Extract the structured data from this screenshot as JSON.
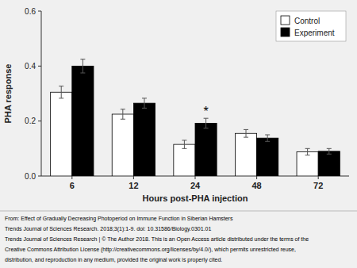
{
  "chart_data": {
    "type": "bar",
    "xlabel": "Hours post-PHA injection",
    "ylabel": "PHA response",
    "categories": [
      6,
      12,
      24,
      48,
      72
    ],
    "series": [
      {
        "name": "Control",
        "color": "#ffffff",
        "values": [
          0.305,
          0.225,
          0.115,
          0.155,
          0.088
        ],
        "errors": [
          0.022,
          0.018,
          0.015,
          0.014,
          0.012
        ]
      },
      {
        "name": "Experiment",
        "color": "#000000",
        "values": [
          0.4,
          0.265,
          0.192,
          0.138,
          0.09
        ],
        "errors": [
          0.025,
          0.018,
          0.018,
          0.012,
          0.01
        ]
      }
    ],
    "ylim": [
      0.0,
      0.6
    ],
    "yticks": [
      {
        "value": 0.0,
        "label": "0.0"
      },
      0.2,
      0.4,
      0.6
    ],
    "legend": "upper right",
    "grid": false,
    "annotations": [
      {
        "text": "*",
        "category": 24,
        "series": "Experiment"
      }
    ],
    "caption": [
      "From: Effect of Gradually Decreasing Photoperiod on Immune Function in Siberian Hamsters",
      "Trends Journal of Sciences Research. 2018;3(1):1-9. doi: 10.31586/Biology.0301.01",
      "Trends Journal of Sciences Research | © The Author 2018. This is an Open Access article distributed under the terms of the",
      "Creative Commons Attribution License (http://creativecommons.org/licenses/by/4.0/), which permits unrestricted reuse,",
      "distribution, and reproduction in any medium, provided the original work is properly cited."
    ]
  }
}
